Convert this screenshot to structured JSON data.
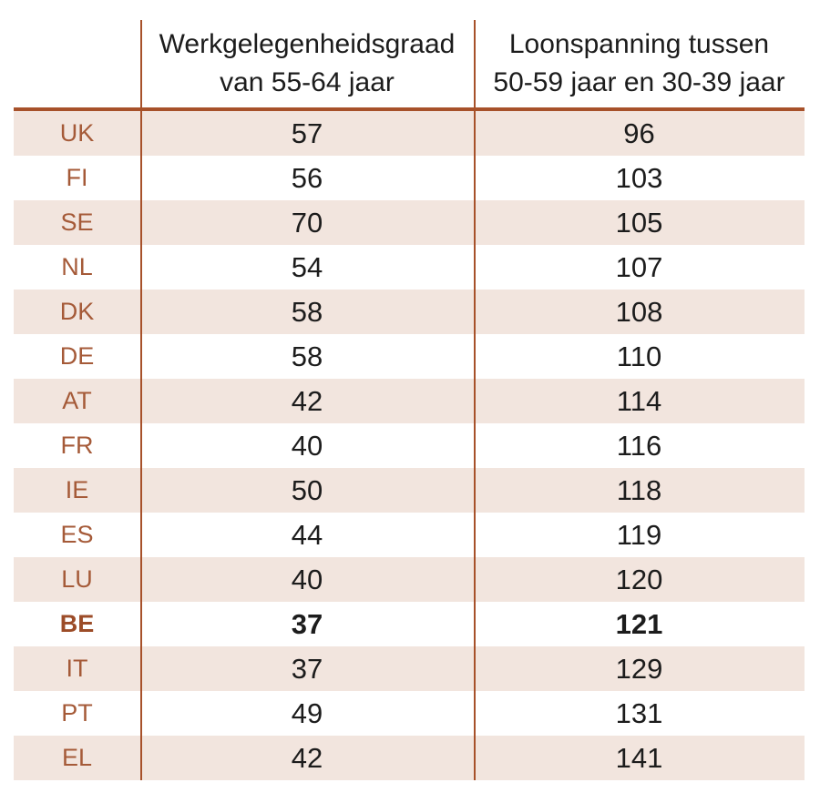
{
  "colors": {
    "accent_line": "#a7512a",
    "country_code_text": "#a55a38",
    "highlight_country_text": "#9c4c28",
    "row_shade": "#f2e5de",
    "value_text": "#1c1c1c"
  },
  "table": {
    "header": {
      "col1_line1": "Werkgelegenheidsgraad",
      "col1_line2": "van 55-64 jaar",
      "col2_line1": "Loonspanning tussen",
      "col2_line2": "50-59 jaar en 30-39 jaar"
    },
    "rows": [
      {
        "country": "UK",
        "col1": "57",
        "col2": "96",
        "shaded": true,
        "bold": false
      },
      {
        "country": "FI",
        "col1": "56",
        "col2": "103",
        "shaded": false,
        "bold": false
      },
      {
        "country": "SE",
        "col1": "70",
        "col2": "105",
        "shaded": true,
        "bold": false
      },
      {
        "country": "NL",
        "col1": "54",
        "col2": "107",
        "shaded": false,
        "bold": false
      },
      {
        "country": "DK",
        "col1": "58",
        "col2": "108",
        "shaded": true,
        "bold": false
      },
      {
        "country": "DE",
        "col1": "58",
        "col2": "110",
        "shaded": false,
        "bold": false
      },
      {
        "country": "AT",
        "col1": "42",
        "col2": "114",
        "shaded": true,
        "bold": false
      },
      {
        "country": "FR",
        "col1": "40",
        "col2": "116",
        "shaded": false,
        "bold": false
      },
      {
        "country": "IE",
        "col1": "50",
        "col2": "118",
        "shaded": true,
        "bold": false
      },
      {
        "country": "ES",
        "col1": "44",
        "col2": "119",
        "shaded": false,
        "bold": false
      },
      {
        "country": "LU",
        "col1": "40",
        "col2": "120",
        "shaded": true,
        "bold": false
      },
      {
        "country": "BE",
        "col1": "37",
        "col2": "121",
        "shaded": false,
        "bold": true
      },
      {
        "country": "IT",
        "col1": "37",
        "col2": "129",
        "shaded": true,
        "bold": false
      },
      {
        "country": "PT",
        "col1": "49",
        "col2": "131",
        "shaded": false,
        "bold": false
      },
      {
        "country": "EL",
        "col1": "42",
        "col2": "141",
        "shaded": true,
        "bold": false
      }
    ]
  },
  "chart_data": {
    "type": "table",
    "categories": [
      "UK",
      "FI",
      "SE",
      "NL",
      "DK",
      "DE",
      "AT",
      "FR",
      "IE",
      "ES",
      "LU",
      "BE",
      "IT",
      "PT",
      "EL"
    ],
    "series": [
      {
        "name": "Werkgelegenheidsgraad van 55-64 jaar",
        "values": [
          57,
          56,
          70,
          54,
          58,
          58,
          42,
          40,
          50,
          44,
          40,
          37,
          37,
          49,
          42
        ]
      },
      {
        "name": "Loonspanning tussen 50-59 jaar en 30-39 jaar",
        "values": [
          96,
          103,
          105,
          107,
          108,
          110,
          114,
          116,
          118,
          119,
          120,
          121,
          129,
          131,
          141
        ]
      }
    ],
    "highlighted_row": "BE",
    "layout": {
      "sorted_by": "Loonspanning tussen 50-59 jaar en 30-39 jaar ascending",
      "striped_rows": true,
      "grid": "two vertical column dividers and one horizontal rule under header"
    }
  }
}
